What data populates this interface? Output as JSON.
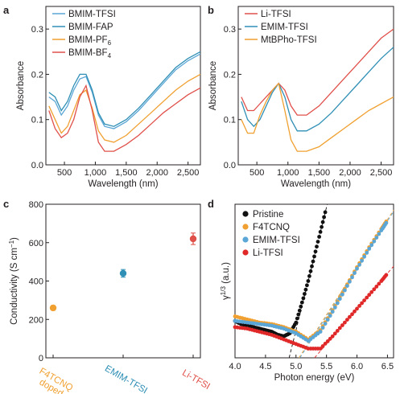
{
  "figure": {
    "panel_labels": [
      "a",
      "b",
      "c",
      "d"
    ]
  },
  "chart_data": [
    {
      "panel": "a",
      "type": "line",
      "xlabel": "Wavelength (nm)",
      "ylabel": "Absorbance",
      "xlim": [
        200,
        2700
      ],
      "ylim": [
        0,
        0.35
      ],
      "xticks": [
        500,
        1000,
        1500,
        2000,
        2500
      ],
      "xtick_labels": [
        "500",
        "1,000",
        "1,500",
        "2,000",
        "2,500"
      ],
      "yticks": [
        0,
        0.1,
        0.2,
        0.3
      ],
      "ytick_labels": [
        "0.0",
        "0.1",
        "0.2",
        "0.3"
      ],
      "legend_position": "top-left",
      "series": [
        {
          "name": "BMIM-TFSI",
          "color": "#5aa6d6",
          "x": [
            250,
            350,
            450,
            550,
            650,
            750,
            850,
            950,
            1050,
            1150,
            1300,
            1500,
            1700,
            1900,
            2100,
            2300,
            2500,
            2700
          ],
          "y": [
            0.15,
            0.14,
            0.11,
            0.13,
            0.165,
            0.19,
            0.195,
            0.16,
            0.11,
            0.085,
            0.08,
            0.095,
            0.12,
            0.15,
            0.18,
            0.21,
            0.23,
            0.245
          ]
        },
        {
          "name": "BMIM-FAP",
          "color": "#2f8fb5",
          "x": [
            250,
            350,
            450,
            550,
            650,
            750,
            850,
            950,
            1050,
            1150,
            1300,
            1500,
            1700,
            1900,
            2100,
            2300,
            2500,
            2700
          ],
          "y": [
            0.16,
            0.15,
            0.12,
            0.14,
            0.175,
            0.2,
            0.2,
            0.165,
            0.115,
            0.09,
            0.085,
            0.1,
            0.125,
            0.155,
            0.185,
            0.215,
            0.235,
            0.25
          ]
        },
        {
          "name": "BMIM-PF6",
          "color": "#f0a030",
          "x": [
            250,
            350,
            450,
            550,
            650,
            750,
            850,
            950,
            1050,
            1150,
            1300,
            1500,
            1700,
            1900,
            2100,
            2300,
            2500,
            2700
          ],
          "y": [
            0.13,
            0.1,
            0.07,
            0.085,
            0.12,
            0.155,
            0.165,
            0.125,
            0.075,
            0.055,
            0.05,
            0.065,
            0.09,
            0.115,
            0.14,
            0.165,
            0.185,
            0.2
          ]
        },
        {
          "name": "BMIM-BF4",
          "color": "#e0504a",
          "x": [
            250,
            350,
            450,
            550,
            650,
            750,
            850,
            950,
            1050,
            1150,
            1300,
            1500,
            1700,
            1900,
            2100,
            2300,
            2500,
            2700
          ],
          "y": [
            0.12,
            0.08,
            0.06,
            0.07,
            0.1,
            0.15,
            0.175,
            0.12,
            0.05,
            0.03,
            0.03,
            0.045,
            0.065,
            0.09,
            0.115,
            0.135,
            0.155,
            0.17
          ]
        }
      ],
      "legend_labels": [
        {
          "base": "BMIM-TFSI",
          "sub": ""
        },
        {
          "base": "BMIM-FAP",
          "sub": ""
        },
        {
          "base": "BMIM-PF",
          "sub": "6"
        },
        {
          "base": "BMIM-BF",
          "sub": "4"
        }
      ]
    },
    {
      "panel": "b",
      "type": "line",
      "xlabel": "Wavelength (nm)",
      "ylabel": "Absorbance",
      "xlim": [
        200,
        2700
      ],
      "ylim": [
        0,
        0.35
      ],
      "xticks": [
        500,
        1000,
        1500,
        2000,
        2500
      ],
      "xtick_labels": [
        "500",
        "1,000",
        "1,500",
        "2,000",
        "2,500"
      ],
      "yticks": [
        0,
        0.1,
        0.2,
        0.3
      ],
      "ytick_labels": [
        "0.0",
        "0.1",
        "0.2",
        "0.3"
      ],
      "legend_position": "top-left",
      "series": [
        {
          "name": "Li-TFSI",
          "color": "#e0504a",
          "x": [
            250,
            350,
            450,
            550,
            650,
            750,
            850,
            950,
            1050,
            1150,
            1300,
            1500,
            1700,
            1900,
            2100,
            2300,
            2500,
            2700
          ],
          "y": [
            0.15,
            0.12,
            0.12,
            0.135,
            0.15,
            0.165,
            0.18,
            0.165,
            0.13,
            0.11,
            0.11,
            0.13,
            0.16,
            0.19,
            0.22,
            0.25,
            0.28,
            0.3
          ]
        },
        {
          "name": "EMIM-TFSI",
          "color": "#2f8fb5",
          "x": [
            250,
            350,
            450,
            550,
            650,
            750,
            850,
            950,
            1050,
            1150,
            1300,
            1500,
            1700,
            1900,
            2100,
            2300,
            2500,
            2700
          ],
          "y": [
            0.14,
            0.1,
            0.085,
            0.1,
            0.13,
            0.16,
            0.18,
            0.15,
            0.1,
            0.075,
            0.075,
            0.09,
            0.115,
            0.145,
            0.175,
            0.205,
            0.235,
            0.26
          ]
        },
        {
          "name": "MtBPho-TFSI",
          "color": "#f0a030",
          "x": [
            250,
            350,
            450,
            550,
            650,
            750,
            850,
            950,
            1050,
            1150,
            1300,
            1500,
            1700,
            1900,
            2100,
            2300,
            2500,
            2700
          ],
          "y": [
            0.1,
            0.07,
            0.07,
            0.11,
            0.14,
            0.165,
            0.18,
            0.12,
            0.055,
            0.03,
            0.03,
            0.04,
            0.06,
            0.08,
            0.1,
            0.12,
            0.135,
            0.15
          ]
        }
      ],
      "legend_labels": [
        {
          "base": "Li-TFSI",
          "sub": ""
        },
        {
          "base": "EMIM-TFSI",
          "sub": ""
        },
        {
          "base": "MtBPho-TFSI",
          "sub": ""
        }
      ]
    },
    {
      "panel": "c",
      "type": "scatter",
      "xlabel": "",
      "ylabel_main": "Conductivity (S cm",
      "ylabel_sup": "−1",
      "ylabel_tail": ")",
      "ylim": [
        0,
        800
      ],
      "yticks": [
        0,
        200,
        400,
        600,
        800
      ],
      "ytick_labels": [
        "0",
        "200",
        "400",
        "600",
        "800"
      ],
      "categories": [
        "F4TCNQ doped",
        "EMIM-TFSI",
        "Li-TFSI"
      ],
      "category_label_lines": [
        [
          "F4TCNQ",
          "doped"
        ],
        [
          "EMIM-TFSI"
        ],
        [
          "Li-TFSI"
        ]
      ],
      "category_colors": [
        "#f0a030",
        "#2f8fb5",
        "#e0504a"
      ],
      "values": [
        260,
        440,
        620
      ],
      "errors": [
        12,
        20,
        30
      ]
    },
    {
      "panel": "d",
      "type": "scatter",
      "xlabel": "Photon energy (eV)",
      "ylabel_main": "γ",
      "ylabel_sup": "1/3",
      "ylabel_tail": " (a.u.)",
      "xlim": [
        4.0,
        6.6
      ],
      "ylim": [
        0,
        1
      ],
      "xticks": [
        4.0,
        4.5,
        5.0,
        5.5,
        6.0,
        6.5
      ],
      "xtick_labels": [
        "4.0",
        "4.5",
        "5.0",
        "5.5",
        "6.0",
        "6.5"
      ],
      "legend_position": "top-left",
      "series": [
        {
          "name": "Pristine",
          "color": "#111111",
          "x": [
            4.0,
            4.1,
            4.2,
            4.3,
            4.4,
            4.5,
            4.6,
            4.7,
            4.8,
            4.9,
            5.0,
            5.1,
            5.2,
            5.3,
            5.4,
            5.5
          ],
          "y": [
            0.24,
            0.22,
            0.21,
            0.2,
            0.19,
            0.18,
            0.17,
            0.15,
            0.14,
            0.16,
            0.23,
            0.36,
            0.5,
            0.66,
            0.82,
            0.98
          ]
        },
        {
          "name": "F4TCNQ",
          "color": "#f0a030",
          "x": [
            4.0,
            4.2,
            4.4,
            4.6,
            4.8,
            5.0,
            5.2,
            5.4,
            5.6,
            5.8,
            6.0,
            6.2,
            6.4,
            6.5
          ],
          "y": [
            0.27,
            0.25,
            0.23,
            0.22,
            0.2,
            0.17,
            0.12,
            0.18,
            0.31,
            0.45,
            0.59,
            0.72,
            0.84,
            0.9
          ]
        },
        {
          "name": "EMIM-TFSI",
          "color": "#5aa6d6",
          "x": [
            4.0,
            4.2,
            4.4,
            4.6,
            4.8,
            5.0,
            5.2,
            5.4,
            5.6,
            5.8,
            6.0,
            6.2,
            6.4,
            6.5
          ],
          "y": [
            0.24,
            0.23,
            0.22,
            0.21,
            0.19,
            0.16,
            0.11,
            0.17,
            0.3,
            0.44,
            0.58,
            0.71,
            0.83,
            0.89
          ]
        },
        {
          "name": "Li-TFSI",
          "color": "#e02828",
          "x": [
            4.0,
            4.2,
            4.4,
            4.6,
            4.8,
            5.0,
            5.2,
            5.4,
            5.6,
            5.8,
            6.0,
            6.2,
            6.4,
            6.5
          ],
          "y": [
            0.2,
            0.19,
            0.17,
            0.15,
            0.12,
            0.09,
            0.06,
            0.06,
            0.14,
            0.23,
            0.32,
            0.41,
            0.5,
            0.55
          ]
        }
      ]
    }
  ]
}
